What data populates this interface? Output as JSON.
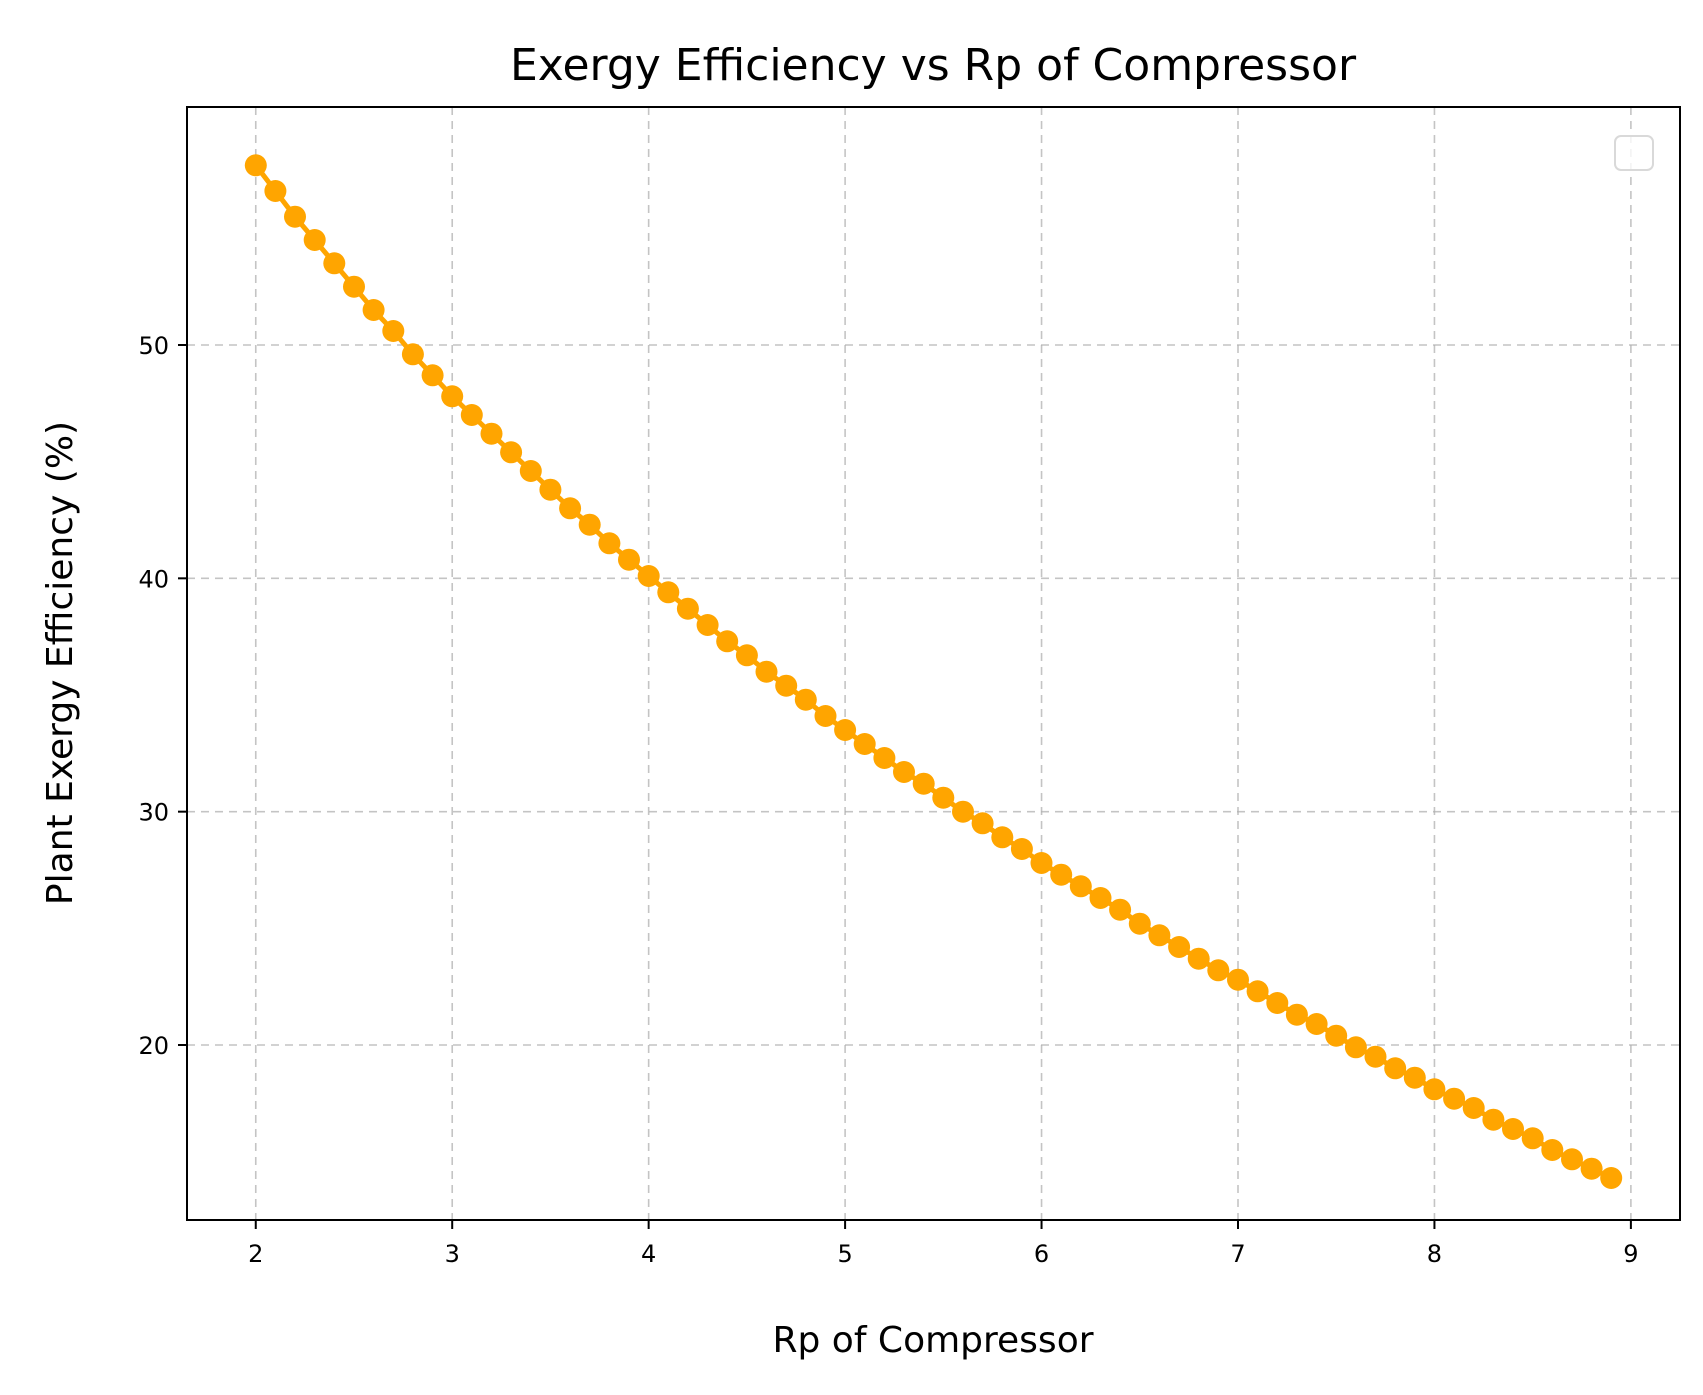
{
  "chart_data": {
    "type": "line",
    "title": "Exergy Efficiency vs Rp of Compressor",
    "xlabel": "Rp of Compressor",
    "ylabel": "Plant Exergy Efficiency (%)",
    "xlim": [
      1.65,
      9.25
    ],
    "ylim": [
      12.5,
      60.2
    ],
    "xticks": [
      "2",
      "3",
      "4",
      "5",
      "6",
      "7",
      "8",
      "9"
    ],
    "yticks": [
      "20",
      "30",
      "40",
      "50"
    ],
    "grid": true,
    "legend": "top-right (empty)",
    "line_color": "#FFA500",
    "marker": "circle",
    "series": [
      {
        "x": [
          2.0,
          2.1,
          2.2,
          2.3,
          2.4,
          2.5,
          2.6,
          2.7,
          2.8,
          2.9,
          3.0,
          3.1,
          3.2,
          3.3,
          3.4,
          3.5,
          3.6,
          3.7,
          3.8,
          3.9,
          4.0,
          4.1,
          4.2,
          4.3,
          4.4,
          4.5,
          4.6,
          4.7,
          4.8,
          4.9,
          5.0,
          5.1,
          5.2,
          5.3,
          5.4,
          5.5,
          5.6,
          5.7,
          5.8,
          5.9,
          6.0,
          6.1,
          6.2,
          6.3,
          6.4,
          6.5,
          6.6,
          6.7,
          6.8,
          6.9,
          7.0,
          7.1,
          7.2,
          7.3,
          7.4,
          7.5,
          7.6,
          7.7,
          7.8,
          7.9,
          8.0,
          8.1,
          8.2,
          8.3,
          8.4,
          8.5,
          8.6,
          8.7,
          8.8,
          8.9
        ],
        "y": [
          57.7,
          56.6,
          55.5,
          54.5,
          53.5,
          52.5,
          51.5,
          50.6,
          49.6,
          48.7,
          47.8,
          47.0,
          46.2,
          45.4,
          44.6,
          43.8,
          43.0,
          42.3,
          41.5,
          40.8,
          40.1,
          39.4,
          38.7,
          38.0,
          37.3,
          36.7,
          36.0,
          35.4,
          34.8,
          34.1,
          33.5,
          32.9,
          32.3,
          31.7,
          31.2,
          30.6,
          30.0,
          29.5,
          28.9,
          28.4,
          27.8,
          27.3,
          26.8,
          26.3,
          25.8,
          25.2,
          24.7,
          24.2,
          23.7,
          23.2,
          22.8,
          22.3,
          21.8,
          21.3,
          20.9,
          20.4,
          19.9,
          19.5,
          19.0,
          18.6,
          18.1,
          17.7,
          17.3,
          16.8,
          16.4,
          16.0,
          15.5,
          15.1,
          14.7,
          14.3
        ]
      }
    ]
  }
}
